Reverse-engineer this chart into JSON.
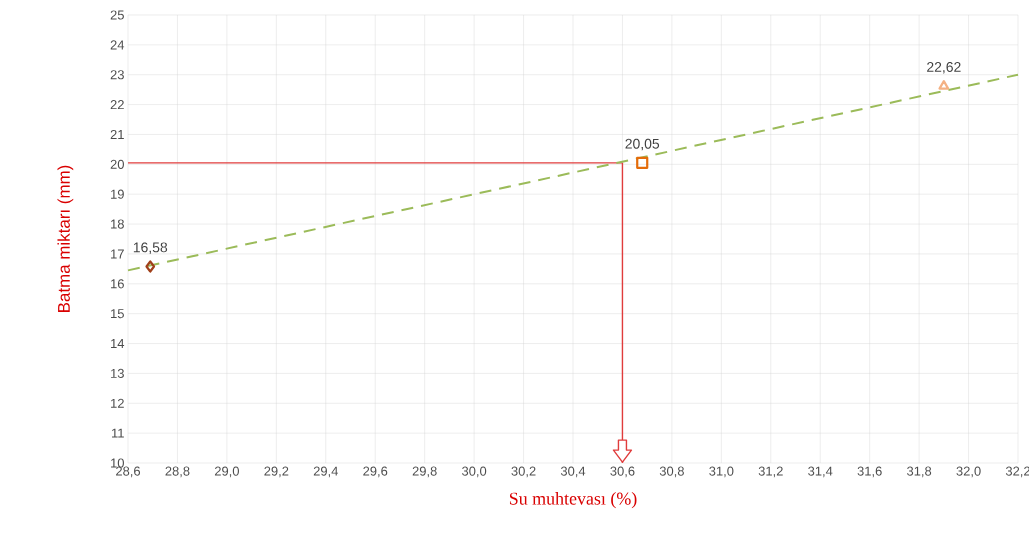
{
  "chart_data": {
    "type": "scatter",
    "xlabel": "Su muhtevası (%)",
    "ylabel": "Batma miktarı (mm)",
    "xlim": [
      28.6,
      32.2
    ],
    "xticks": [
      {
        "value": 28.6,
        "label": "28,6"
      },
      {
        "value": 28.8,
        "label": "28,8"
      },
      {
        "value": 29.0,
        "label": "29,0"
      },
      {
        "value": 29.2,
        "label": "29,2"
      },
      {
        "value": 29.4,
        "label": "29,4"
      },
      {
        "value": 29.6,
        "label": "29,6"
      },
      {
        "value": 29.8,
        "label": "29,8"
      },
      {
        "value": 30.0,
        "label": "30,0"
      },
      {
        "value": 30.2,
        "label": "30,2"
      },
      {
        "value": 30.4,
        "label": "30,4"
      },
      {
        "value": 30.6,
        "label": "30,6"
      },
      {
        "value": 30.8,
        "label": "30,8"
      },
      {
        "value": 31.0,
        "label": "31,0"
      },
      {
        "value": 31.2,
        "label": "31,2"
      },
      {
        "value": 31.4,
        "label": "31,4"
      },
      {
        "value": 31.6,
        "label": "31,6"
      },
      {
        "value": 31.8,
        "label": "31,8"
      },
      {
        "value": 32.0,
        "label": "32,0"
      },
      {
        "value": 32.2,
        "label": "32,2"
      }
    ],
    "ylim": [
      10,
      25
    ],
    "yticks": [
      10,
      11,
      12,
      13,
      14,
      15,
      16,
      17,
      18,
      19,
      20,
      21,
      22,
      23,
      24,
      25
    ],
    "grid": true,
    "ref_lines": [
      {
        "axis": "y",
        "value": 20.05,
        "color": "#e03c3c",
        "line_style": "solid"
      },
      {
        "axis": "x",
        "value": 30.6,
        "color": "#e03c3c",
        "line_style": "solid"
      }
    ],
    "series": [
      {
        "type": "line",
        "color": "#9bbb59",
        "line_style": "dashed",
        "marker": "none",
        "x": [
          28.6,
          32.2
        ],
        "values": [
          16.45,
          23.0
        ]
      },
      {
        "color": "#a0401a",
        "marker": "diamond",
        "x": [
          28.69
        ],
        "values": [
          16.58
        ],
        "value_labels": [
          "16,58"
        ]
      },
      {
        "color": "#e46c0a",
        "marker": "square",
        "x": [
          30.68
        ],
        "values": [
          20.05
        ],
        "value_labels": [
          "20,05"
        ]
      },
      {
        "color": "#f4b183",
        "marker": "triangle",
        "x": [
          31.9
        ],
        "values": [
          22.62
        ],
        "value_labels": [
          "22,62"
        ]
      }
    ]
  }
}
